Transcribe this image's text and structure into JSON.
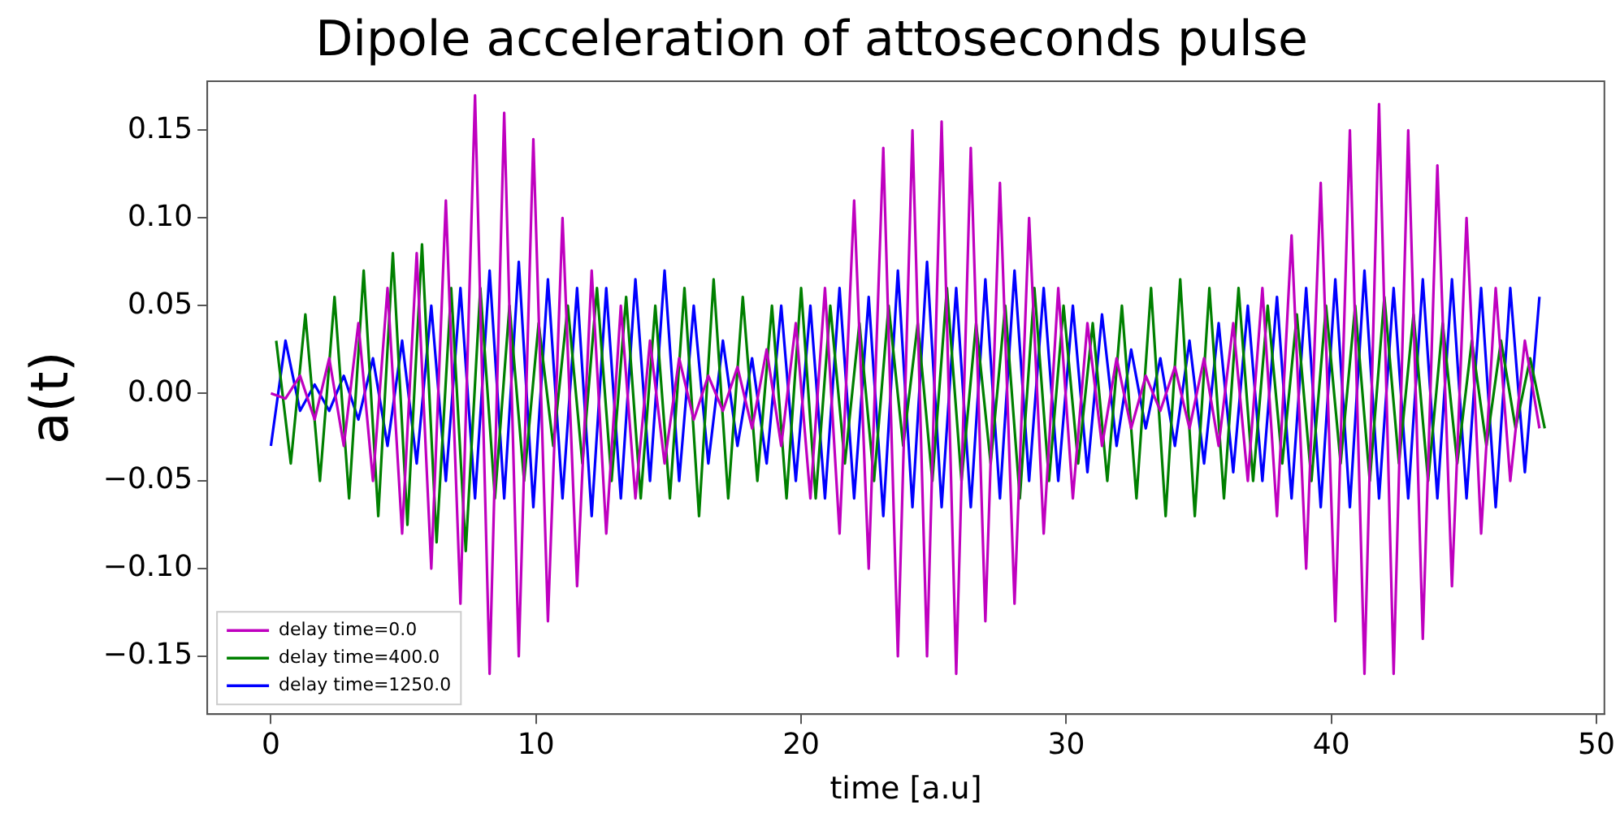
{
  "chart_data": {
    "type": "line",
    "title": "Dipole acceleration of attoseconds pulse",
    "xlabel": "time [a.u]",
    "ylabel": "a(t)",
    "x": [
      0,
      0.55,
      1.1,
      1.65,
      2.2,
      2.75,
      3.3,
      3.85,
      4.4,
      4.95,
      5.5,
      6.05,
      6.6,
      7.15,
      7.7,
      8.25,
      8.8,
      9.35,
      9.9,
      10.45,
      11,
      11.55,
      12.1,
      12.65,
      13.2,
      13.75,
      14.3,
      14.85,
      15.4,
      15.95,
      16.5,
      17.05,
      17.6,
      18.15,
      18.7,
      19.25,
      19.8,
      20.35,
      20.9,
      21.45,
      22,
      22.55,
      23.1,
      23.65,
      24.2,
      24.75,
      25.3,
      25.85,
      26.4,
      26.95,
      27.5,
      28.05,
      28.6,
      29.15,
      29.7,
      30.25,
      30.8,
      31.35,
      31.9,
      32.45,
      33,
      33.55,
      34.1,
      34.65,
      35.2,
      35.75,
      36.3,
      36.85,
      37.4,
      37.95,
      38.5,
      39.05,
      39.6,
      40.15,
      40.7,
      41.25,
      41.8,
      42.35,
      42.9,
      43.45,
      44,
      44.55,
      45.1,
      45.65,
      46.2,
      46.75,
      47.3,
      47.85
    ],
    "series": [
      {
        "name": "delay time=0.0",
        "color": "#bf00bf",
        "values": [
          0.0,
          -0.003,
          0.01,
          -0.015,
          0.02,
          -0.03,
          0.04,
          -0.05,
          0.06,
          -0.08,
          0.08,
          -0.1,
          0.11,
          -0.12,
          0.17,
          -0.16,
          0.16,
          -0.15,
          0.145,
          -0.13,
          0.1,
          -0.11,
          0.07,
          -0.08,
          0.05,
          -0.06,
          0.03,
          -0.04,
          0.02,
          -0.015,
          0.01,
          -0.01,
          0.015,
          -0.02,
          0.025,
          -0.03,
          0.04,
          -0.06,
          0.06,
          -0.08,
          0.11,
          -0.1,
          0.14,
          -0.15,
          0.15,
          -0.15,
          0.155,
          -0.16,
          0.14,
          -0.13,
          0.12,
          -0.12,
          0.1,
          -0.08,
          0.06,
          -0.06,
          0.04,
          -0.03,
          0.02,
          -0.02,
          0.01,
          -0.01,
          0.015,
          -0.02,
          0.02,
          -0.03,
          0.04,
          -0.05,
          0.06,
          -0.07,
          0.09,
          -0.1,
          0.12,
          -0.13,
          0.15,
          -0.16,
          0.165,
          -0.16,
          0.15,
          -0.14,
          0.13,
          -0.11,
          0.1,
          -0.08,
          0.06,
          -0.05,
          0.03,
          -0.02
        ]
      },
      {
        "name": "delay time=400.0",
        "color": "#008000",
        "x": [
          0.2,
          0.75,
          1.3,
          1.85,
          2.4,
          2.95,
          3.5,
          4.05,
          4.6,
          5.15,
          5.7,
          6.25,
          6.8,
          7.35,
          7.9,
          8.45,
          9,
          9.55,
          10.1,
          10.65,
          11.2,
          11.75,
          12.3,
          12.85,
          13.4,
          13.95,
          14.5,
          15.05,
          15.6,
          16.15,
          16.7,
          17.25,
          17.8,
          18.35,
          18.9,
          19.45,
          20,
          20.55,
          21.1,
          21.65,
          22.2,
          22.75,
          23.3,
          23.85,
          24.4,
          24.95,
          25.5,
          26.05,
          26.6,
          27.15,
          27.7,
          28.25,
          28.8,
          29.35,
          29.9,
          30.45,
          31,
          31.55,
          32.1,
          32.65,
          33.2,
          33.75,
          34.3,
          34.85,
          35.4,
          35.95,
          36.5,
          37.05,
          37.6,
          38.15,
          38.7,
          39.25,
          39.8,
          40.35,
          40.9,
          41.45,
          42,
          42.55,
          43.1,
          43.65,
          44.2,
          44.75,
          45.3,
          45.85,
          46.4,
          46.95,
          47.5,
          48.05
        ],
        "values": [
          0.03,
          -0.04,
          0.045,
          -0.05,
          0.055,
          -0.06,
          0.07,
          -0.07,
          0.08,
          -0.075,
          0.085,
          -0.085,
          0.06,
          -0.09,
          0.06,
          -0.06,
          0.05,
          -0.05,
          0.04,
          -0.03,
          0.05,
          -0.04,
          0.06,
          -0.05,
          0.055,
          -0.06,
          0.05,
          -0.06,
          0.06,
          -0.07,
          0.065,
          -0.06,
          0.055,
          -0.05,
          0.05,
          -0.06,
          0.06,
          -0.06,
          0.05,
          -0.04,
          0.04,
          -0.05,
          0.05,
          -0.03,
          0.04,
          -0.05,
          0.06,
          -0.05,
          0.04,
          -0.04,
          0.05,
          -0.06,
          0.06,
          -0.05,
          0.05,
          -0.04,
          0.04,
          -0.05,
          0.05,
          -0.06,
          0.06,
          -0.07,
          0.065,
          -0.07,
          0.06,
          -0.06,
          0.06,
          -0.05,
          0.05,
          -0.04,
          0.045,
          -0.05,
          0.05,
          -0.04,
          0.05,
          -0.05,
          0.055,
          -0.04,
          0.045,
          -0.05,
          0.04,
          -0.04,
          0.03,
          -0.03,
          0.03,
          -0.02,
          0.02,
          -0.02
        ]
      },
      {
        "name": "delay time=1250.0",
        "color": "#0000ff",
        "values": [
          -0.03,
          0.03,
          -0.01,
          0.005,
          -0.01,
          0.01,
          -0.015,
          0.02,
          -0.03,
          0.03,
          -0.04,
          0.05,
          -0.05,
          0.06,
          -0.06,
          0.07,
          -0.06,
          0.075,
          -0.065,
          0.065,
          -0.06,
          0.06,
          -0.07,
          0.06,
          -0.06,
          0.065,
          -0.05,
          0.07,
          -0.05,
          0.05,
          -0.04,
          0.03,
          -0.03,
          0.02,
          -0.04,
          0.05,
          -0.05,
          0.05,
          -0.06,
          0.06,
          -0.06,
          0.055,
          -0.07,
          0.07,
          -0.065,
          0.075,
          -0.065,
          0.06,
          -0.065,
          0.065,
          -0.06,
          0.07,
          -0.05,
          0.06,
          -0.05,
          0.05,
          -0.045,
          0.045,
          -0.03,
          0.025,
          -0.02,
          0.02,
          -0.03,
          0.03,
          -0.04,
          0.04,
          -0.045,
          0.05,
          -0.05,
          0.055,
          -0.06,
          0.06,
          -0.065,
          0.065,
          -0.065,
          0.07,
          -0.06,
          0.06,
          -0.06,
          0.065,
          -0.06,
          0.065,
          -0.06,
          0.06,
          -0.065,
          0.06,
          -0.045,
          0.055
        ]
      }
    ],
    "xlim": [
      -2.4,
      50.3
    ],
    "ylim": [
      -0.183,
      0.178
    ],
    "xticks": [
      0,
      10,
      20,
      30,
      40,
      50
    ],
    "yticks": [
      {
        "value": -0.15,
        "label": "−0.15"
      },
      {
        "value": -0.1,
        "label": "−0.10"
      },
      {
        "value": -0.05,
        "label": "−0.05"
      },
      {
        "value": 0,
        "label": "0.00"
      },
      0.05,
      {
        "value": 0.1,
        "label": "0.10"
      },
      0.15
    ],
    "grid": false,
    "legend": "bottom left"
  }
}
